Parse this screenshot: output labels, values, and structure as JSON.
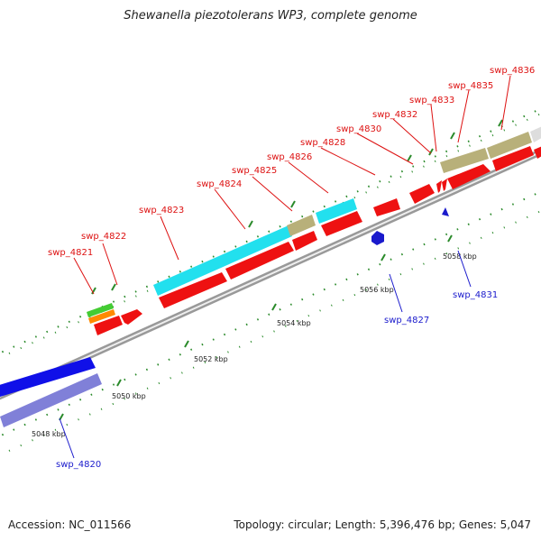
{
  "title": "Shewanella piezotolerans WP3, complete genome",
  "footer": {
    "accession": "Accession: NC_011566",
    "summary": "Topology: circular; Length: 5,396,476 bp; Genes: 5,047"
  },
  "map": {
    "ticks": [
      {
        "label": "5048 kbp",
        "t": 0.05
      },
      {
        "label": "5050 kbp",
        "t": 0.16
      },
      {
        "label": "5052 kbp",
        "t": 0.33
      },
      {
        "label": "5054 kbp",
        "t": 0.49
      },
      {
        "label": "5056 kbp",
        "t": 0.66
      },
      {
        "label": "5058 kbp",
        "t": 0.82
      }
    ],
    "genes": [
      {
        "name": "swp_4820",
        "strand": "reverse",
        "color": "#1a1acc"
      },
      {
        "name": "swp_4821",
        "strand": "forward",
        "color": "#dd1111"
      },
      {
        "name": "swp_4822",
        "strand": "forward",
        "color": "#dd1111"
      },
      {
        "name": "swp_4823",
        "strand": "forward",
        "color": "#dd1111"
      },
      {
        "name": "swp_4824",
        "strand": "forward",
        "color": "#dd1111"
      },
      {
        "name": "swp_4825",
        "strand": "forward",
        "color": "#dd1111"
      },
      {
        "name": "swp_4826",
        "strand": "forward",
        "color": "#dd1111"
      },
      {
        "name": "swp_4827",
        "strand": "reverse",
        "color": "#1a1acc"
      },
      {
        "name": "swp_4828",
        "strand": "forward",
        "color": "#dd1111"
      },
      {
        "name": "swp_4830",
        "strand": "forward",
        "color": "#dd1111"
      },
      {
        "name": "swp_4831",
        "strand": "reverse",
        "color": "#1a1acc"
      },
      {
        "name": "swp_4832",
        "strand": "forward",
        "color": "#dd1111"
      },
      {
        "name": "swp_4833",
        "strand": "forward",
        "color": "#dd1111"
      },
      {
        "name": "swp_4835",
        "strand": "forward",
        "color": "#dd1111"
      },
      {
        "name": "swp_4836",
        "strand": "forward",
        "color": "#dd1111"
      }
    ]
  }
}
